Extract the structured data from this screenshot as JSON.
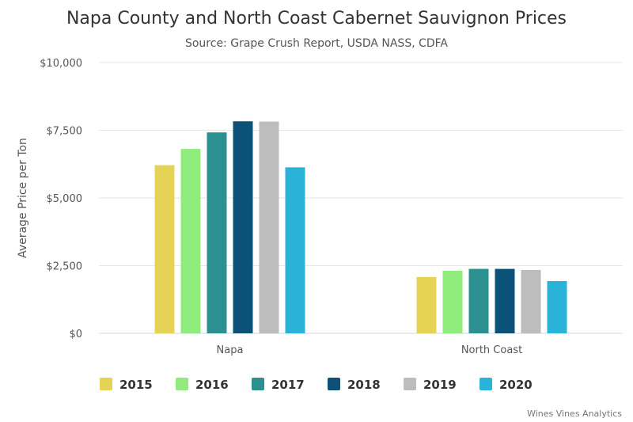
{
  "chart_data": {
    "type": "bar",
    "title": "Napa County and North Coast Cabernet Sauvignon Prices",
    "subtitle": "Source: Grape Crush Report, USDA NASS, CDFA",
    "ylabel": "Average Price per Ton",
    "xlabel": "",
    "ylim": [
      0,
      10000
    ],
    "yticks": [
      0,
      2500,
      5000,
      7500,
      10000
    ],
    "ytick_labels": [
      "$0",
      "$2,500",
      "$5,000",
      "$7,500",
      "$10,000"
    ],
    "categories": [
      "Napa",
      "North Coast"
    ],
    "series": [
      {
        "name": "2015",
        "color": "#e4d354",
        "values": [
          6210,
          2080
        ]
      },
      {
        "name": "2016",
        "color": "#90ed7d",
        "values": [
          6810,
          2310
        ]
      },
      {
        "name": "2017",
        "color": "#2b908f",
        "values": [
          7420,
          2380
        ]
      },
      {
        "name": "2018",
        "color": "#0b5178",
        "values": [
          7830,
          2380
        ]
      },
      {
        "name": "2019",
        "color": "#bdbdbd",
        "values": [
          7820,
          2340
        ]
      },
      {
        "name": "2020",
        "color": "#29b3d8",
        "values": [
          6130,
          1930
        ]
      }
    ],
    "grid": true,
    "legend": "bottom-left"
  },
  "credit": "Wines Vines Analytics"
}
